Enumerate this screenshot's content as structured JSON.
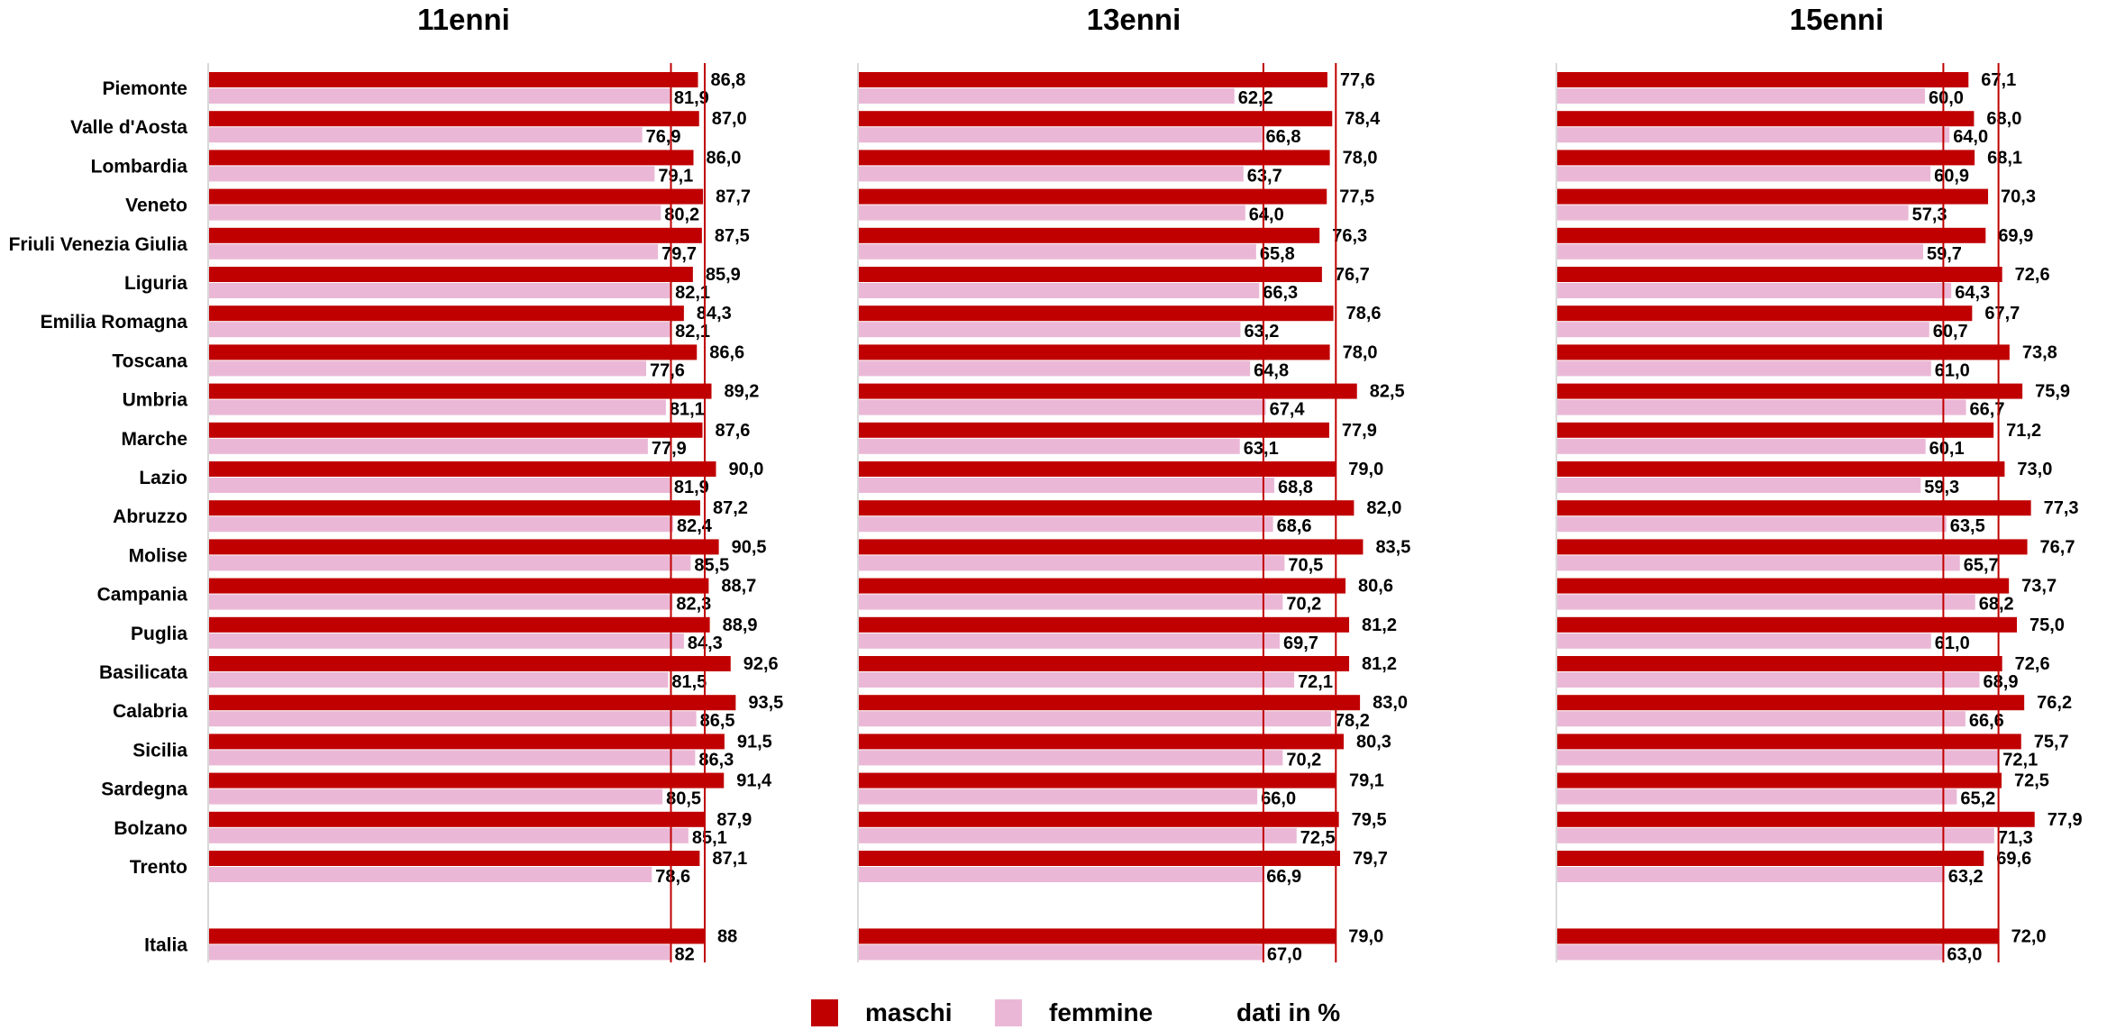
{
  "chart_data": {
    "type": "bar",
    "orientation": "horizontal",
    "categories": [
      "Piemonte",
      "Valle d'Aosta",
      "Lombardia",
      "Veneto",
      "Friuli Venezia Giulia",
      "Liguria",
      "Emilia Romagna",
      "Toscana",
      "Umbria",
      "Marche",
      "Lazio",
      "Abruzzo",
      "Molise",
      "Campania",
      "Puglia",
      "Basilicata",
      "Calabria",
      "Sicilia",
      "Sardegna",
      "Bolzano",
      "Trento",
      "Italia"
    ],
    "panels": [
      {
        "title": "11enni",
        "series": [
          {
            "name": "maschi",
            "values": [
              86.8,
              87.0,
              86.0,
              87.7,
              87.5,
              85.9,
              84.3,
              86.6,
              89.2,
              87.6,
              90.0,
              87.2,
              90.5,
              88.7,
              88.9,
              92.6,
              93.5,
              91.5,
              91.4,
              87.9,
              87.1,
              88
            ],
            "labels": [
              "86,8",
              "87,0",
              "86,0",
              "87,7",
              "87,5",
              "85,9",
              "84,3",
              "86,6",
              "89,2",
              "87,6",
              "90,0",
              "87,2",
              "90,5",
              "88,7",
              "88,9",
              "92,6",
              "93,5",
              "91,5",
              "91,4",
              "87,9",
              "87,1",
              "88"
            ]
          },
          {
            "name": "femmine",
            "values": [
              81.9,
              76.9,
              79.1,
              80.2,
              79.7,
              82.1,
              82.1,
              77.6,
              81.1,
              77.9,
              81.9,
              82.4,
              85.5,
              82.3,
              84.3,
              81.5,
              86.5,
              86.3,
              80.5,
              85.1,
              78.6,
              82
            ],
            "labels": [
              "81,9",
              "76,9",
              "79,1",
              "80,2",
              "79,7",
              "82,1",
              "82,1",
              "77,6",
              "81,1",
              "77,9",
              "81,9",
              "82,4",
              "85,5",
              "82,3",
              "84,3",
              "81,5",
              "86,5",
              "86,3",
              "80,5",
              "85,1",
              "78,6",
              "82"
            ]
          }
        ],
        "reference_lines": [
          88,
          82
        ]
      },
      {
        "title": "13enni",
        "series": [
          {
            "name": "maschi",
            "values": [
              77.6,
              78.4,
              78.0,
              77.5,
              76.3,
              76.7,
              78.6,
              78.0,
              82.5,
              77.9,
              79.0,
              82.0,
              83.5,
              80.6,
              81.2,
              81.2,
              83.0,
              80.3,
              79.1,
              79.5,
              79.7,
              79.0
            ],
            "labels": [
              "77,6",
              "78,4",
              "78,0",
              "77,5",
              "76,3",
              "76,7",
              "78,6",
              "78,0",
              "82,5",
              "77,9",
              "79,0",
              "82,0",
              "83,5",
              "80,6",
              "81,2",
              "81,2",
              "83,0",
              "80,3",
              "79,1",
              "79,5",
              "79,7",
              "79,0"
            ]
          },
          {
            "name": "femmine",
            "values": [
              62.2,
              66.8,
              63.7,
              64.0,
              65.8,
              66.3,
              63.2,
              64.8,
              67.4,
              63.1,
              68.8,
              68.6,
              70.5,
              70.2,
              69.7,
              72.1,
              78.2,
              70.2,
              66.0,
              72.5,
              66.9,
              67.0
            ],
            "labels": [
              "62,2",
              "66,8",
              "63,7",
              "64,0",
              "65,8",
              "66,3",
              "63,2",
              "64,8",
              "67,4",
              "63,1",
              "68,8",
              "68,6",
              "70,5",
              "70,2",
              "69,7",
              "72,1",
              "78,2",
              "70,2",
              "66,0",
              "72,5",
              "66,9",
              "67,0"
            ]
          }
        ],
        "reference_lines": [
          79.0,
          67.0
        ]
      },
      {
        "title": "15enni",
        "series": [
          {
            "name": "maschi",
            "values": [
              67.1,
              68.0,
              68.1,
              70.3,
              69.9,
              72.6,
              67.7,
              73.8,
              75.9,
              71.2,
              73.0,
              77.3,
              76.7,
              73.7,
              75.0,
              72.6,
              76.2,
              75.7,
              72.5,
              77.9,
              69.6,
              72.0
            ],
            "labels": [
              "67,1",
              "68,0",
              "68,1",
              "70,3",
              "69,9",
              "72,6",
              "67,7",
              "73,8",
              "75,9",
              "71,2",
              "73,0",
              "77,3",
              "76,7",
              "73,7",
              "75,0",
              "72,6",
              "76,2",
              "75,7",
              "72,5",
              "77,9",
              "69,6",
              "72,0"
            ]
          },
          {
            "name": "femmine",
            "values": [
              60.0,
              64.0,
              60.9,
              57.3,
              59.7,
              64.3,
              60.7,
              61.0,
              66.7,
              60.1,
              59.3,
              63.5,
              65.7,
              68.2,
              61.0,
              68.9,
              66.6,
              72.1,
              65.2,
              71.3,
              63.2,
              63.0
            ],
            "labels": [
              "60,0",
              "64,0",
              "60,9",
              "57,3",
              "59,7",
              "64,3",
              "60,7",
              "61,0",
              "66,7",
              "60,1",
              "59,3",
              "63,5",
              "65,7",
              "68,2",
              "61,0",
              "68,9",
              "66,6",
              "72,1",
              "65,2",
              "71,3",
              "63,2",
              "63,0"
            ]
          }
        ],
        "reference_lines": [
          72.0,
          63.0
        ]
      }
    ],
    "colors": {
      "maschi": "#c00000",
      "femmine": "#eab8d6",
      "reference_line": "#c00000"
    },
    "xlim": [
      0,
      100
    ],
    "grid": false,
    "legend": {
      "placement": "bottom",
      "note": "dati in %"
    }
  }
}
